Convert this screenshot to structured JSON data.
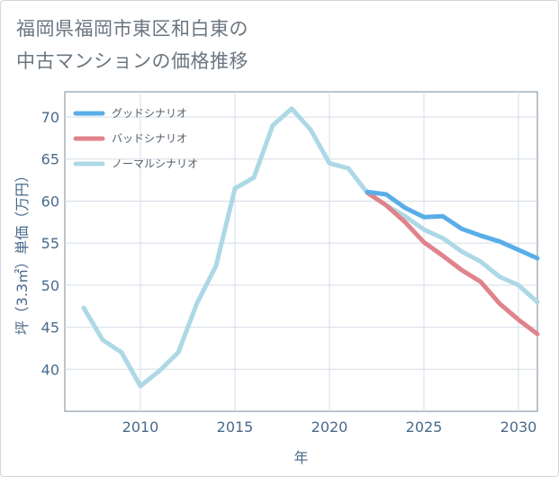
{
  "title": "福岡県福岡市東区和白東の\n中古マンションの価格推移",
  "chart_data": {
    "type": "line",
    "xlabel": "年",
    "ylabel": "坪（3.3㎡）単価（万円）",
    "xlim": [
      2006,
      2031
    ],
    "ylim": [
      35,
      73
    ],
    "x_ticks": [
      2010,
      2015,
      2020,
      2025,
      2030
    ],
    "y_ticks": [
      40,
      45,
      50,
      55,
      60,
      65,
      70
    ],
    "grid": true,
    "legend_position": "top-left",
    "series": [
      {
        "name": "ノーマルシナリオ",
        "color": "#add8e6",
        "x": [
          2007,
          2008,
          2009,
          2010,
          2011,
          2012,
          2013,
          2014,
          2015,
          2016,
          2017,
          2018,
          2019,
          2020,
          2021,
          2022,
          2023,
          2024,
          2025,
          2026,
          2027,
          2028,
          2029,
          2030,
          2031
        ],
        "values": [
          47.3,
          43.5,
          42.0,
          38.0,
          39.8,
          42.0,
          47.9,
          52.3,
          61.5,
          62.8,
          69.0,
          71.0,
          68.5,
          64.5,
          63.9,
          61.0,
          59.5,
          58.2,
          56.6,
          55.6,
          54.0,
          52.8,
          51.0,
          50.0,
          48.0
        ]
      },
      {
        "name": "バッドシナリオ",
        "color": "#e0838b",
        "x": [
          2022,
          2023,
          2024,
          2025,
          2026,
          2027,
          2028,
          2029,
          2030,
          2031
        ],
        "values": [
          61.0,
          59.5,
          57.5,
          55.1,
          53.5,
          51.8,
          50.4,
          47.8,
          45.9,
          44.2
        ]
      },
      {
        "name": "グッドシナリオ",
        "color": "#5aaee8",
        "x": [
          2022,
          2023,
          2024,
          2025,
          2026,
          2027,
          2028,
          2029,
          2030,
          2031
        ],
        "values": [
          61.1,
          60.8,
          59.2,
          58.1,
          58.2,
          56.7,
          55.9,
          55.2,
          54.2,
          53.2
        ]
      }
    ],
    "legend": [
      {
        "label": "グッドシナリオ",
        "color": "#5aaee8"
      },
      {
        "label": "バッドシナリオ",
        "color": "#e0838b"
      },
      {
        "label": "ノーマルシナリオ",
        "color": "#add8e6"
      }
    ]
  }
}
